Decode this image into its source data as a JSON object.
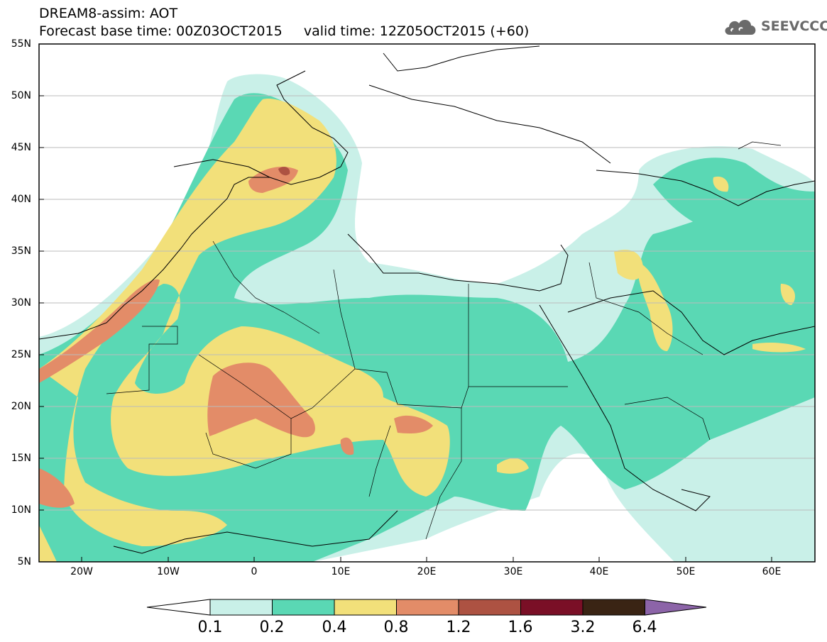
{
  "header": {
    "model_title": "DREAM8-assim: AOT",
    "forecast_base": "Forecast base time: 00Z03OCT2015",
    "valid_time": "valid time: 12Z05OCT2015 (+60)",
    "logo_text": "SEEVCCC",
    "logo_icon": "cloud-icon"
  },
  "map": {
    "lat_labels": [
      "55N",
      "50N",
      "45N",
      "40N",
      "35N",
      "30N",
      "25N",
      "20N",
      "15N",
      "10N",
      "5N"
    ],
    "lon_labels": [
      "20W",
      "10W",
      "0",
      "10E",
      "20E",
      "30E",
      "40E",
      "50E",
      "60E"
    ],
    "lat_range": [
      5,
      55
    ],
    "lon_range": [
      -25,
      65
    ],
    "variable": "Aerosol optical thickness"
  },
  "colorbar": {
    "levels": [
      "0.1",
      "0.2",
      "0.4",
      "0.8",
      "1.2",
      "1.6",
      "3.2",
      "6.4"
    ],
    "colors": [
      "#c9f0e8",
      "#5ad8b4",
      "#f2e07a",
      "#e38c68",
      "#ad5242",
      "#7a0f26",
      "#3a2414",
      "#8c64a8"
    ],
    "under_color": "#ffffff"
  },
  "palette": {
    "land_white": "#ffffff",
    "border": "#000000",
    "grid": "#bbbbbb"
  }
}
